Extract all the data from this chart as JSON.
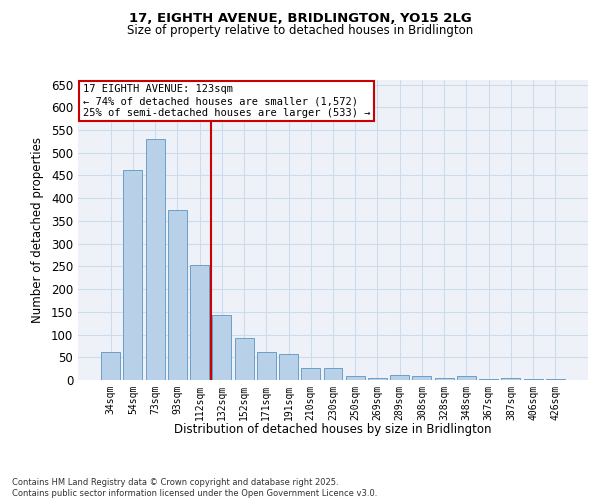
{
  "title_line1": "17, EIGHTH AVENUE, BRIDLINGTON, YO15 2LG",
  "title_line2": "Size of property relative to detached houses in Bridlington",
  "xlabel": "Distribution of detached houses by size in Bridlington",
  "ylabel": "Number of detached properties",
  "categories": [
    "34sqm",
    "54sqm",
    "73sqm",
    "93sqm",
    "112sqm",
    "132sqm",
    "152sqm",
    "171sqm",
    "191sqm",
    "210sqm",
    "230sqm",
    "250sqm",
    "269sqm",
    "289sqm",
    "308sqm",
    "328sqm",
    "348sqm",
    "367sqm",
    "387sqm",
    "406sqm",
    "426sqm"
  ],
  "values": [
    62,
    462,
    530,
    373,
    252,
    142,
    93,
    62,
    57,
    27,
    27,
    8,
    5,
    10,
    8,
    5,
    8,
    3,
    4,
    2,
    2
  ],
  "bar_color": "#b8d0e8",
  "bar_edge_color": "#6aa0c8",
  "grid_color": "#ccdcec",
  "bg_color": "#eef2f8",
  "vline_x": 4.5,
  "vline_color": "#cc0000",
  "annotation_text": "17 EIGHTH AVENUE: 123sqm\n← 74% of detached houses are smaller (1,572)\n25% of semi-detached houses are larger (533) →",
  "annotation_box_color": "#cc0000",
  "ylim": [
    0,
    660
  ],
  "yticks": [
    0,
    50,
    100,
    150,
    200,
    250,
    300,
    350,
    400,
    450,
    500,
    550,
    600,
    650
  ],
  "footer_line1": "Contains HM Land Registry data © Crown copyright and database right 2025.",
  "footer_line2": "Contains public sector information licensed under the Open Government Licence v3.0."
}
